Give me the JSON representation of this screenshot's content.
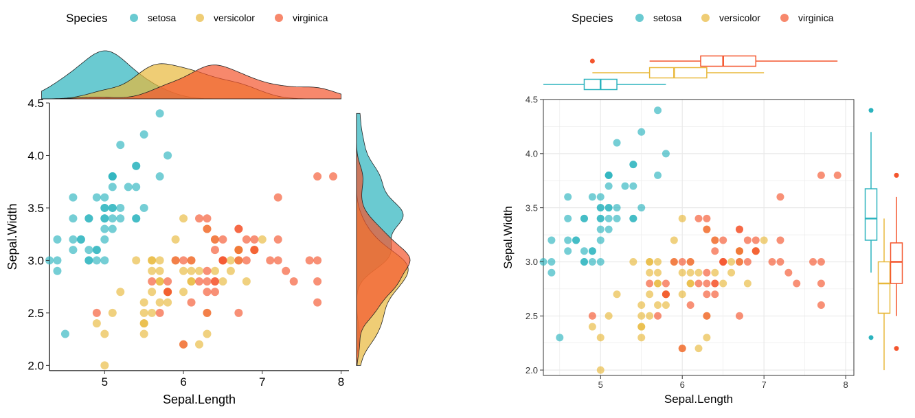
{
  "colors": {
    "setosa": "#2BB3BE",
    "versicolor": "#E8B83A",
    "virginica": "#F4552D",
    "density_stroke": "#222222",
    "grid": "#E9E9E9"
  },
  "chart_data": [
    {
      "type": "scatter",
      "name": "scatter-with-density-margins",
      "xlabel": "Sepal.Length",
      "ylabel": "Sepal.Width",
      "xlim": [
        4.3,
        8.1
      ],
      "ylim": [
        1.95,
        4.5
      ],
      "xticks": [
        "5",
        "6",
        "7",
        "8"
      ],
      "yticks": [
        "2.0",
        "2.5",
        "3.0",
        "3.5",
        "4.0",
        "4.5"
      ],
      "grid": false,
      "legend": {
        "title": "Species",
        "position": "top",
        "labels": [
          "setosa",
          "versicolor",
          "virginica"
        ]
      },
      "marginal": "density"
    },
    {
      "type": "scatter",
      "name": "scatter-with-boxplot-margins",
      "xlabel": "Sepal.Length",
      "ylabel": "Sepal.Width",
      "xlim": [
        4.3,
        8.1
      ],
      "ylim": [
        1.95,
        4.5
      ],
      "xticks": [
        "5",
        "6",
        "7",
        "8"
      ],
      "yticks": [
        "2.0",
        "2.5",
        "3.0",
        "3.5",
        "4.0",
        "4.5"
      ],
      "grid": true,
      "legend": {
        "title": "Species",
        "position": "top",
        "labels": [
          "setosa",
          "versicolor",
          "virginica"
        ]
      },
      "marginal": "boxplot"
    }
  ],
  "series": [
    {
      "name": "setosa",
      "points": [
        [
          5.1,
          3.5
        ],
        [
          4.9,
          3.0
        ],
        [
          4.7,
          3.2
        ],
        [
          4.6,
          3.1
        ],
        [
          5.0,
          3.6
        ],
        [
          5.4,
          3.9
        ],
        [
          4.6,
          3.4
        ],
        [
          5.0,
          3.4
        ],
        [
          4.4,
          2.9
        ],
        [
          4.9,
          3.1
        ],
        [
          5.4,
          3.7
        ],
        [
          4.8,
          3.4
        ],
        [
          4.8,
          3.0
        ],
        [
          4.3,
          3.0
        ],
        [
          5.8,
          4.0
        ],
        [
          5.7,
          4.4
        ],
        [
          5.4,
          3.9
        ],
        [
          5.1,
          3.5
        ],
        [
          5.7,
          3.8
        ],
        [
          5.1,
          3.8
        ],
        [
          5.4,
          3.4
        ],
        [
          5.1,
          3.7
        ],
        [
          4.6,
          3.6
        ],
        [
          5.1,
          3.3
        ],
        [
          4.8,
          3.4
        ],
        [
          5.0,
          3.0
        ],
        [
          5.0,
          3.4
        ],
        [
          5.2,
          3.5
        ],
        [
          5.2,
          3.4
        ],
        [
          4.7,
          3.2
        ],
        [
          4.8,
          3.1
        ],
        [
          5.4,
          3.4
        ],
        [
          5.2,
          4.1
        ],
        [
          5.5,
          4.2
        ],
        [
          4.9,
          3.1
        ],
        [
          5.0,
          3.2
        ],
        [
          5.5,
          3.5
        ],
        [
          4.9,
          3.6
        ],
        [
          4.4,
          3.0
        ],
        [
          5.1,
          3.4
        ],
        [
          5.0,
          3.5
        ],
        [
          4.5,
          2.3
        ],
        [
          4.4,
          3.2
        ],
        [
          5.0,
          3.5
        ],
        [
          5.1,
          3.8
        ],
        [
          4.8,
          3.0
        ],
        [
          5.1,
          3.8
        ],
        [
          4.6,
          3.2
        ],
        [
          5.3,
          3.7
        ],
        [
          5.0,
          3.3
        ]
      ]
    },
    {
      "name": "versicolor",
      "points": [
        [
          7.0,
          3.2
        ],
        [
          6.4,
          3.2
        ],
        [
          6.9,
          3.1
        ],
        [
          5.5,
          2.3
        ],
        [
          6.5,
          2.8
        ],
        [
          5.7,
          2.8
        ],
        [
          6.3,
          3.3
        ],
        [
          4.9,
          2.4
        ],
        [
          6.6,
          2.9
        ],
        [
          5.2,
          2.7
        ],
        [
          5.0,
          2.0
        ],
        [
          5.9,
          3.0
        ],
        [
          6.0,
          2.2
        ],
        [
          6.1,
          2.9
        ],
        [
          5.6,
          2.9
        ],
        [
          6.7,
          3.1
        ],
        [
          5.6,
          3.0
        ],
        [
          5.8,
          2.7
        ],
        [
          6.2,
          2.2
        ],
        [
          5.6,
          2.5
        ],
        [
          5.9,
          3.2
        ],
        [
          6.1,
          2.8
        ],
        [
          6.3,
          2.5
        ],
        [
          6.1,
          2.8
        ],
        [
          6.4,
          2.9
        ],
        [
          6.6,
          3.0
        ],
        [
          6.8,
          2.8
        ],
        [
          6.7,
          3.0
        ],
        [
          6.0,
          2.9
        ],
        [
          5.7,
          2.6
        ],
        [
          5.5,
          2.4
        ],
        [
          5.5,
          2.4
        ],
        [
          5.8,
          2.7
        ],
        [
          6.0,
          2.7
        ],
        [
          5.4,
          3.0
        ],
        [
          6.0,
          3.4
        ],
        [
          6.7,
          3.1
        ],
        [
          6.3,
          2.3
        ],
        [
          5.6,
          3.0
        ],
        [
          5.5,
          2.5
        ],
        [
          5.5,
          2.6
        ],
        [
          6.1,
          3.0
        ],
        [
          5.8,
          2.6
        ],
        [
          5.0,
          2.3
        ],
        [
          5.6,
          2.7
        ],
        [
          5.7,
          3.0
        ],
        [
          5.7,
          2.9
        ],
        [
          6.2,
          2.9
        ],
        [
          5.1,
          2.5
        ],
        [
          5.7,
          2.8
        ]
      ]
    },
    {
      "name": "virginica",
      "points": [
        [
          6.3,
          3.3
        ],
        [
          5.8,
          2.7
        ],
        [
          7.1,
          3.0
        ],
        [
          6.3,
          2.9
        ],
        [
          6.5,
          3.0
        ],
        [
          7.6,
          3.0
        ],
        [
          4.9,
          2.5
        ],
        [
          7.3,
          2.9
        ],
        [
          6.7,
          2.5
        ],
        [
          7.2,
          3.6
        ],
        [
          6.5,
          3.2
        ],
        [
          6.4,
          2.7
        ],
        [
          6.8,
          3.0
        ],
        [
          5.7,
          2.5
        ],
        [
          5.8,
          2.8
        ],
        [
          6.4,
          3.2
        ],
        [
          6.5,
          3.0
        ],
        [
          7.7,
          3.8
        ],
        [
          7.7,
          2.6
        ],
        [
          6.0,
          2.2
        ],
        [
          6.9,
          3.2
        ],
        [
          5.6,
          2.8
        ],
        [
          7.7,
          2.8
        ],
        [
          6.3,
          2.7
        ],
        [
          6.7,
          3.3
        ],
        [
          7.2,
          3.2
        ],
        [
          6.2,
          2.8
        ],
        [
          6.1,
          3.0
        ],
        [
          6.4,
          2.8
        ],
        [
          7.2,
          3.0
        ],
        [
          7.4,
          2.8
        ],
        [
          7.9,
          3.8
        ],
        [
          6.4,
          2.8
        ],
        [
          6.3,
          2.8
        ],
        [
          6.1,
          2.6
        ],
        [
          7.7,
          3.0
        ],
        [
          6.3,
          3.4
        ],
        [
          6.4,
          3.1
        ],
        [
          6.0,
          3.0
        ],
        [
          6.9,
          3.1
        ],
        [
          6.7,
          3.1
        ],
        [
          6.9,
          3.1
        ],
        [
          5.8,
          2.7
        ],
        [
          6.8,
          3.2
        ],
        [
          6.7,
          3.3
        ],
        [
          6.7,
          3.0
        ],
        [
          6.3,
          2.5
        ],
        [
          6.5,
          3.0
        ],
        [
          6.2,
          3.4
        ],
        [
          5.9,
          3.0
        ]
      ]
    }
  ]
}
